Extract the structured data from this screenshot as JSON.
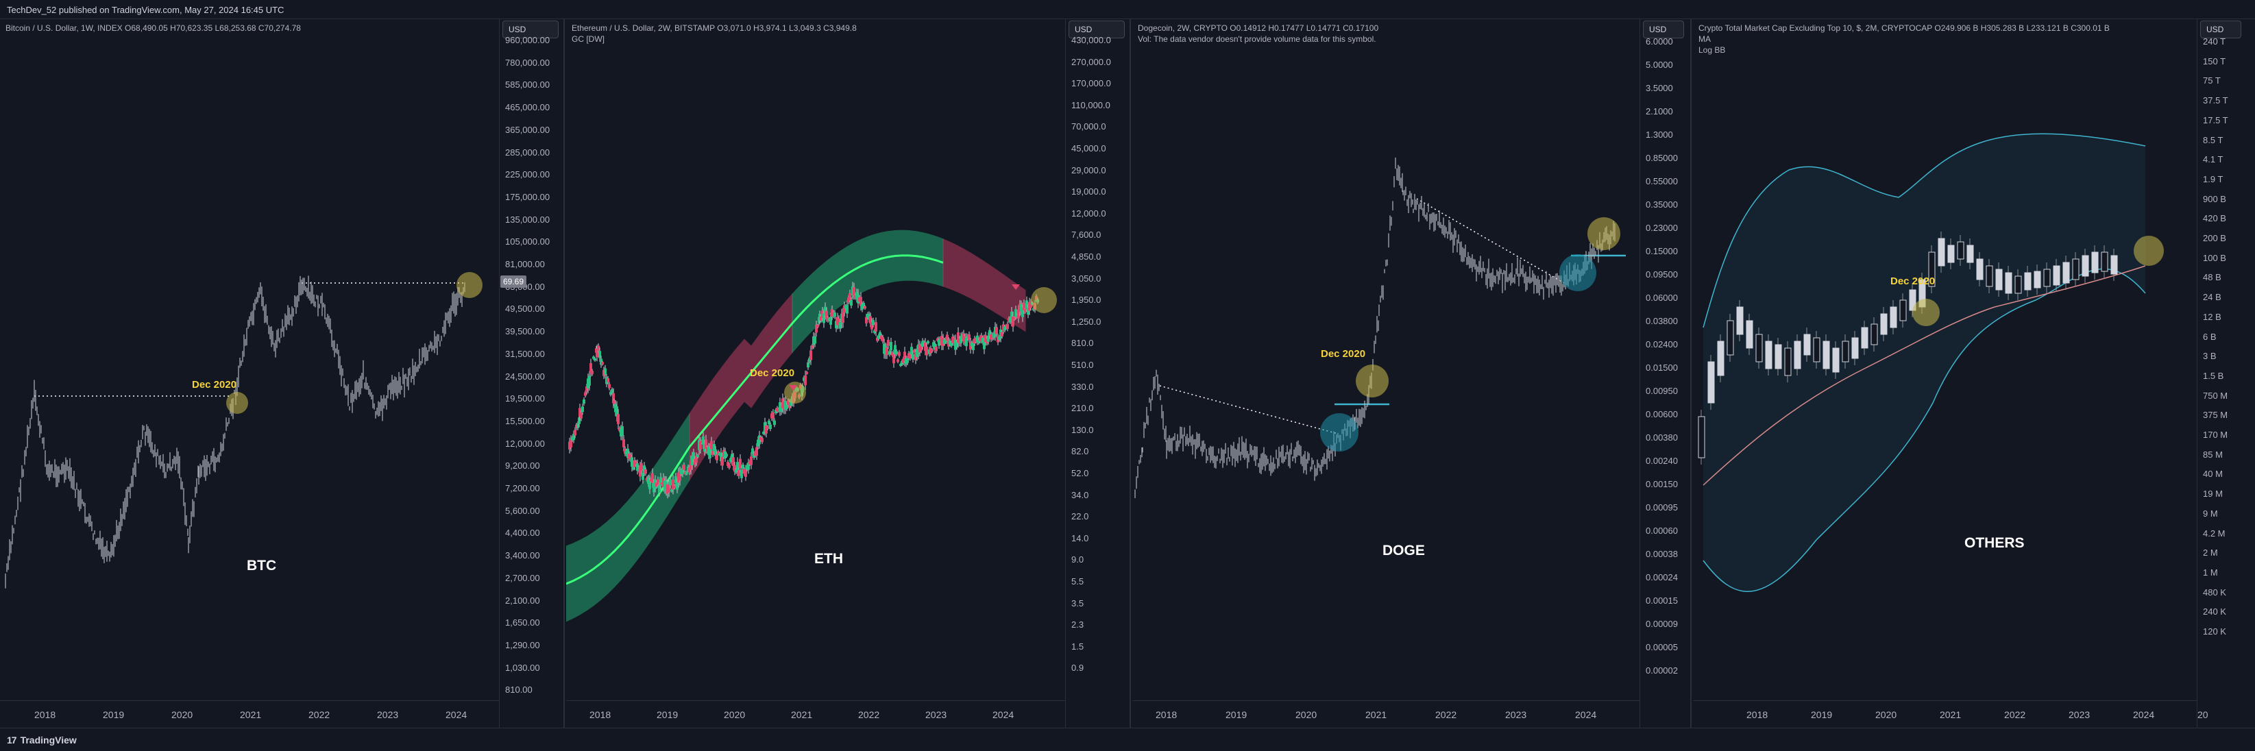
{
  "header": {
    "publish_line": "TechDev_52 published on TradingView.com, May 27, 2024 16:45 UTC"
  },
  "footer": {
    "brand": "TradingView",
    "brand_mark": "17"
  },
  "panels": [
    {
      "id": "btc",
      "legend_line1": "Bitcoin / U.S. Dollar, 1W, INDEX  O68,490.05  H70,623.35  L68,253.68  C70,274.78",
      "legend_line2": "",
      "legend_line3": "",
      "currency": "USD",
      "symbol_label": "BTC",
      "dec_label": "Dec 2020",
      "price_tag": "69.69",
      "years": [
        "2018",
        "2019",
        "2020",
        "2021",
        "2022",
        "2023",
        "2024"
      ],
      "price_axis": [
        "960,000.00",
        "780,000.00",
        "585,000.00",
        "465,000.00",
        "365,000.00",
        "285,000.00",
        "225,000.00",
        "175,000.00",
        "135,000.00",
        "105,000.00",
        "81,000.00",
        "63,000.00",
        "49,500.00",
        "39,500.00",
        "31,500.00",
        "24,500.00",
        "19,500.00",
        "15,500.00",
        "12,000.00",
        "9,200.00",
        "7,200.00",
        "5,600.00",
        "4,400.00",
        "3,400.00",
        "2,700.00",
        "2,100.00",
        "1,650.00",
        "1,290.00",
        "1,030.00",
        "810.00"
      ]
    },
    {
      "id": "eth",
      "legend_line1": "Ethereum / U.S. Dollar, 2W, BITSTAMP  O3,071.0  H3,974.1  L3,049.3  C3,949.8",
      "legend_line2": "GC [DW]",
      "legend_line3": "",
      "currency": "USD",
      "symbol_label": "ETH",
      "dec_label": "Dec 2020",
      "years": [
        "2018",
        "2019",
        "2020",
        "2021",
        "2022",
        "2023",
        "2024"
      ],
      "price_axis": [
        "430,000.0",
        "270,000.0",
        "170,000.0",
        "110,000.0",
        "70,000.0",
        "45,000.0",
        "29,000.0",
        "19,000.0",
        "12,000.0",
        "7,600.0",
        "4,850.0",
        "3,050.0",
        "1,950.0",
        "1,250.0",
        "810.0",
        "510.0",
        "330.0",
        "210.0",
        "130.0",
        "82.0",
        "52.0",
        "34.0",
        "22.0",
        "14.0",
        "9.0",
        "5.5",
        "3.5",
        "2.3",
        "1.5",
        "0.9"
      ]
    },
    {
      "id": "doge",
      "legend_line1": "Dogecoin, 2W, CRYPTO  O0.14912  H0.17477  L0.14771  C0.17100",
      "legend_line2": "Vol: The data vendor doesn't provide volume data for this symbol.",
      "legend_line3": "",
      "currency": "USD",
      "symbol_label": "DOGE",
      "dec_label": "Dec 2020",
      "years": [
        "2018",
        "2019",
        "2020",
        "2021",
        "2022",
        "2023",
        "2024"
      ],
      "price_axis": [
        "6.0000",
        "5.0000",
        "3.5000",
        "2.1000",
        "1.3000",
        "0.85000",
        "0.55000",
        "0.35000",
        "0.23000",
        "0.15000",
        "0.09500",
        "0.06000",
        "0.03800",
        "0.02400",
        "0.01500",
        "0.00950",
        "0.00600",
        "0.00380",
        "0.00240",
        "0.00150",
        "0.00095",
        "0.00060",
        "0.00038",
        "0.00024",
        "0.00015",
        "0.00009",
        "0.00005",
        "0.00002"
      ]
    },
    {
      "id": "others",
      "legend_line1": "Crypto Total Market Cap Excluding Top 10, $, 2M, CRYPTOCAP  O249.906 B  H305.283 B  L233.121 B  C300.01 B",
      "legend_line2": "MA",
      "legend_line3": "Log BB",
      "currency": "USD",
      "symbol_label": "OTHERS",
      "dec_label": "Dec 2020",
      "years": [
        "2018",
        "2019",
        "2020",
        "2021",
        "2022",
        "2023",
        "2024",
        "20"
      ],
      "price_axis": [
        "240 T",
        "150 T",
        "75 T",
        "37.5 T",
        "17.5 T",
        "8.5 T",
        "4.1 T",
        "1.9 T",
        "900 B",
        "420 B",
        "200 B",
        "100 B",
        "48 B",
        "24 B",
        "12 B",
        "6 B",
        "3 B",
        "1.5 B",
        "750 M",
        "375 M",
        "170 M",
        "85 M",
        "40 M",
        "19 M",
        "9 M",
        "4.2 M",
        "2 M",
        "1 M",
        "480 K",
        "240 K",
        "120 K"
      ]
    }
  ],
  "colors": {
    "background": "#131722",
    "candle": "#b2b5be",
    "ribbon_green": "#26c281",
    "ribbon_green_line": "#39ff7a",
    "ribbon_red": "#e0446b",
    "highlight_yellow": "#c9b84a",
    "highlight_cyan": "#1e8fa8",
    "bb_line": "#3fb5d0",
    "ma_line": "#d98a8a",
    "dec_text": "#f5d33d"
  }
}
